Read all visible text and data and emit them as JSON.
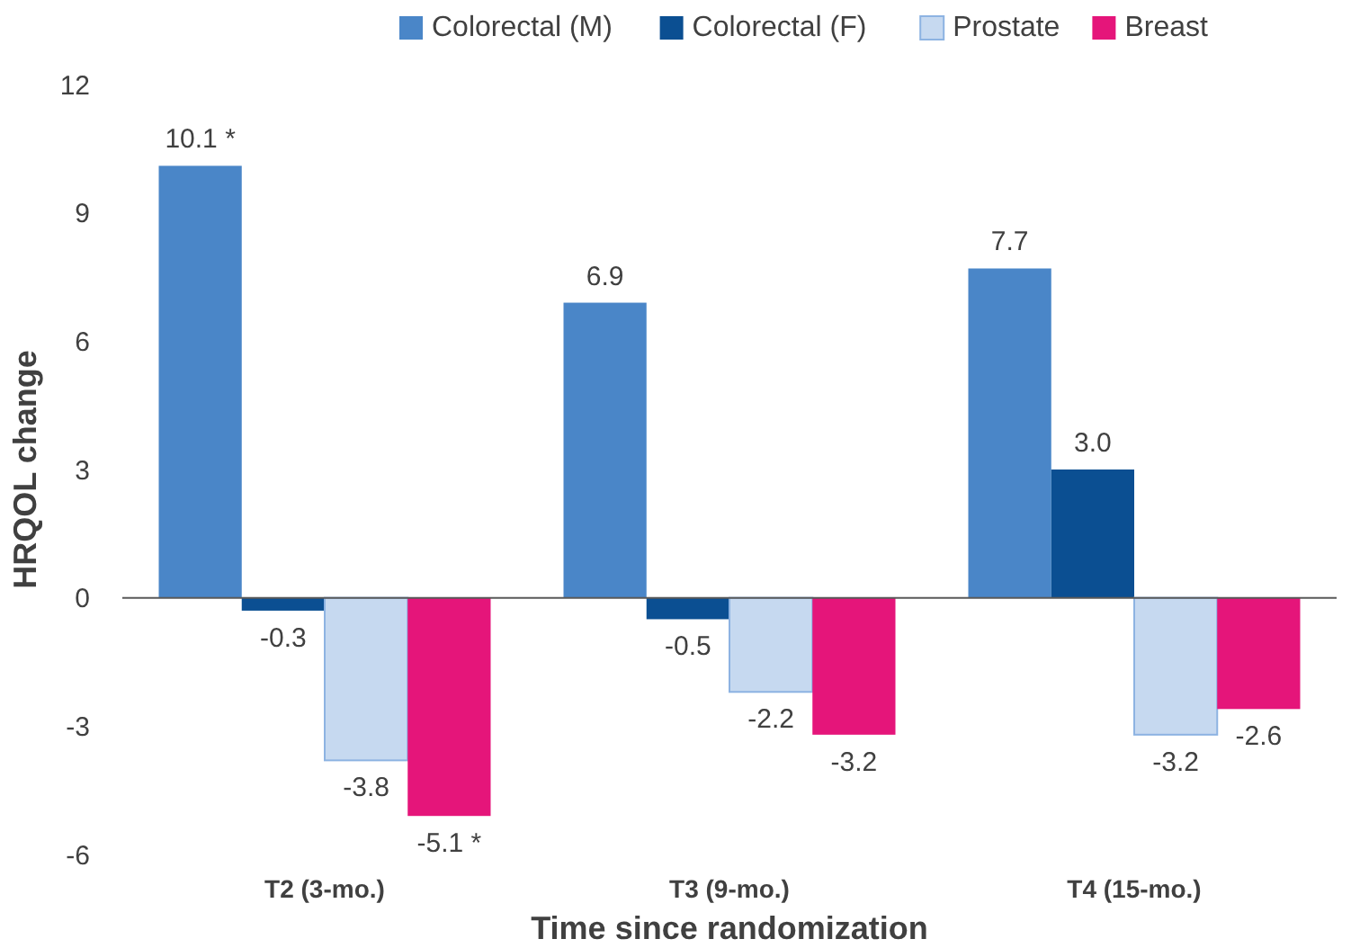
{
  "chart_data": {
    "type": "bar",
    "xlabel": "Time since randomization",
    "ylabel": "HRQOL change",
    "categories": [
      "T2 (3-mo.)",
      "T3 (9-mo.)",
      "T4 (15-mo.)"
    ],
    "series": [
      {
        "name": "Colorectal (M)",
        "color": "#4a86c8",
        "values": [
          10.1,
          6.9,
          7.7
        ],
        "value_labels": [
          "10.1 *",
          "6.9",
          "7.7"
        ]
      },
      {
        "name": "Colorectal (F)",
        "color": "#0b4f92",
        "values": [
          -0.3,
          -0.5,
          3.0
        ],
        "value_labels": [
          "-0.3",
          "-0.5",
          "3.0"
        ]
      },
      {
        "name": "Prostate",
        "color": "#c6d9f0",
        "values": [
          -3.8,
          -2.2,
          -3.2
        ],
        "value_labels": [
          "-3.8",
          "-2.2",
          "-3.2"
        ]
      },
      {
        "name": "Breast",
        "color": "#e5157a",
        "values": [
          -5.1,
          -3.2,
          -2.6
        ],
        "value_labels": [
          "-5.1 *",
          "-3.2",
          "-2.6"
        ]
      }
    ],
    "ylim": [
      -6,
      12
    ],
    "yticks": [
      -6,
      -3,
      0,
      3,
      6,
      9,
      12
    ],
    "legend": "top"
  }
}
